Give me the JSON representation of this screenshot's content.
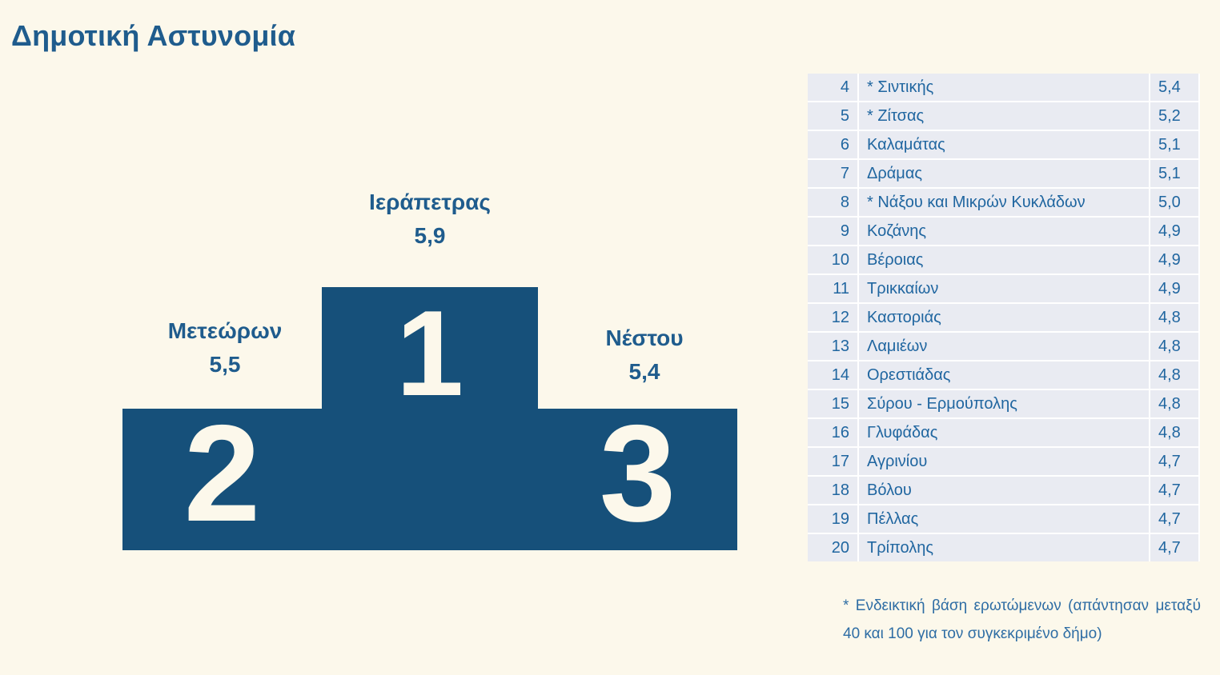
{
  "title": "Δημοτική Αστυνομία",
  "podium": {
    "first": {
      "rank": "1",
      "name": "Ιεράπετρας",
      "value": "5,9"
    },
    "second": {
      "rank": "2",
      "name": "Μετεώρων",
      "value": "5,5"
    },
    "third": {
      "rank": "3",
      "name": "Νέστου",
      "value": "5,4"
    }
  },
  "table": {
    "rows": [
      {
        "rank": "4",
        "name": "* Σιντικής",
        "value": "5,4"
      },
      {
        "rank": "5",
        "name": "* Ζίτσας",
        "value": "5,2"
      },
      {
        "rank": "6",
        "name": "Καλαμάτας",
        "value": "5,1"
      },
      {
        "rank": "7",
        "name": "Δράμας",
        "value": "5,1"
      },
      {
        "rank": "8",
        "name": "* Νάξου και Μικρών Κυκλάδων",
        "value": "5,0"
      },
      {
        "rank": "9",
        "name": "Κοζάνης",
        "value": "4,9"
      },
      {
        "rank": "10",
        "name": "Βέροιας",
        "value": "4,9"
      },
      {
        "rank": "11",
        "name": "Τρικκαίων",
        "value": "4,9"
      },
      {
        "rank": "12",
        "name": "Καστοριάς",
        "value": "4,8"
      },
      {
        "rank": "13",
        "name": "Λαμιέων",
        "value": "4,8"
      },
      {
        "rank": "14",
        "name": "Ορεστιάδας",
        "value": "4,8"
      },
      {
        "rank": "15",
        "name": "Σύρου - Ερμούπολης",
        "value": "4,8"
      },
      {
        "rank": "16",
        "name": "Γλυφάδας",
        "value": "4,8"
      },
      {
        "rank": "17",
        "name": "Αγρινίου",
        "value": "4,7"
      },
      {
        "rank": "18",
        "name": "Βόλου",
        "value": "4,7"
      },
      {
        "rank": "19",
        "name": "Πέλλας",
        "value": "4,7"
      },
      {
        "rank": "20",
        "name": "Τρίπολης",
        "value": "4,7"
      }
    ]
  },
  "footnote": "* Ενδεικτική βάση ερωτώμενων (απάντησαν μεταξύ 40 και 100 για τον συγκεκριμένο δήμο)",
  "colors": {
    "background": "#FCF8EB",
    "podium": "#16507A",
    "podium_number": "#FCF8EB",
    "heading_text": "#1F5C8D",
    "table_row": "#E9EBF2",
    "table_text": "#2066A0",
    "footnote_text": "#2E6DA4",
    "row_separator": "#FFFFFF"
  },
  "chart_data": {
    "type": "table",
    "title": "Δημοτική Αστυνομία",
    "layout": "podium-top3-plus-ranked-table",
    "categories": [
      "Ιεράπετρας",
      "Μετεώρων",
      "Νέστου",
      "* Σιντικής",
      "* Ζίτσας",
      "Καλαμάτας",
      "Δράμας",
      "* Νάξου και Μικρών Κυκλάδων",
      "Κοζάνης",
      "Βέροιας",
      "Τρικκαίων",
      "Καστοριάς",
      "Λαμιέων",
      "Ορεστιάδας",
      "Σύρου - Ερμούπολης",
      "Γλυφάδας",
      "Αγρινίου",
      "Βόλου",
      "Πέλλας",
      "Τρίπολης"
    ],
    "ranks": [
      1,
      2,
      3,
      4,
      5,
      6,
      7,
      8,
      9,
      10,
      11,
      12,
      13,
      14,
      15,
      16,
      17,
      18,
      19,
      20
    ],
    "values": [
      5.9,
      5.5,
      5.4,
      5.4,
      5.2,
      5.1,
      5.1,
      5.0,
      4.9,
      4.9,
      4.9,
      4.8,
      4.8,
      4.8,
      4.8,
      4.8,
      4.7,
      4.7,
      4.7,
      4.7
    ],
    "annotation": "* Ενδεικτική βάση ερωτώμενων (απάντησαν μεταξύ 40 και 100 για τον συγκεκριμένο δήμο)"
  }
}
